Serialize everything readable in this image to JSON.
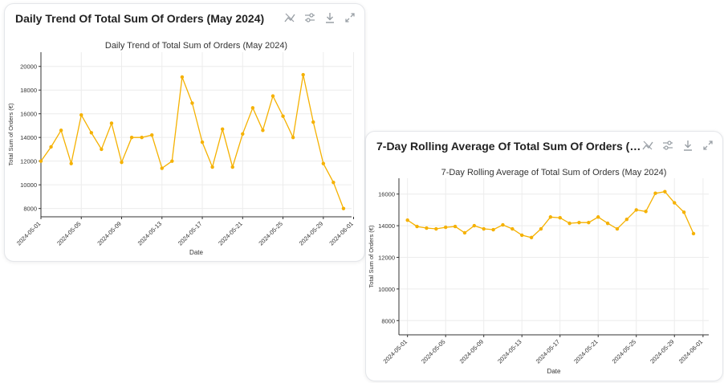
{
  "cards": [
    {
      "title": "Daily Trend Of Total Sum Of Orders (May 2024)",
      "toolbar": [
        "chart-type-icon",
        "filter-sliders-icon",
        "download-icon",
        "expand-icon"
      ]
    },
    {
      "title": "7-Day Rolling Average Of Total Sum Of Orders (May 20...",
      "toolbar": [
        "chart-type-icon",
        "filter-sliders-icon",
        "download-icon",
        "expand-icon"
      ]
    }
  ],
  "colors": {
    "line": "#F5B100",
    "grid": "#ececec",
    "axis": "#333333",
    "text": "#333333"
  },
  "chart_data": [
    {
      "type": "line",
      "title": "Daily Trend of Total Sum of Orders (May 2024)",
      "xlabel": "Date",
      "ylabel": "Total Sum of Orders (€)",
      "ylim": [
        7300,
        21200
      ],
      "xlim": [
        0,
        30.8
      ],
      "yticks": [
        8000,
        10000,
        12000,
        14000,
        16000,
        18000,
        20000
      ],
      "xticks": [
        {
          "pos": 0,
          "label": "2024-05-01"
        },
        {
          "pos": 4,
          "label": "2024-05-05"
        },
        {
          "pos": 8,
          "label": "2024-05-09"
        },
        {
          "pos": 12,
          "label": "2024-05-13"
        },
        {
          "pos": 16,
          "label": "2024-05-17"
        },
        {
          "pos": 20,
          "label": "2024-05-21"
        },
        {
          "pos": 24,
          "label": "2024-05-25"
        },
        {
          "pos": 28,
          "label": "2024-05-29"
        },
        {
          "pos": 31,
          "label": "2024-06-01"
        }
      ],
      "values": [
        12000,
        13200,
        14600,
        11800,
        15900,
        14400,
        13000,
        15200,
        11900,
        14000,
        14000,
        14200,
        11400,
        12000,
        19100,
        16900,
        13600,
        11500,
        14700,
        11500,
        14300,
        16500,
        14600,
        17500,
        15800,
        14000,
        19300,
        15300,
        11800,
        10200,
        8000
      ]
    },
    {
      "type": "line",
      "title": "7-Day Rolling Average of Total Sum of Orders (May 2024)",
      "xlabel": "Date",
      "ylabel": "Total Sum of Orders (€)",
      "ylim": [
        7100,
        17000
      ],
      "xlim": [
        -0.9,
        31.6
      ],
      "yticks": [
        8000,
        10000,
        12000,
        14000,
        16000
      ],
      "xticks": [
        {
          "pos": 0,
          "label": "2024-05-01"
        },
        {
          "pos": 4,
          "label": "2024-05-05"
        },
        {
          "pos": 8,
          "label": "2024-05-09"
        },
        {
          "pos": 12,
          "label": "2024-05-13"
        },
        {
          "pos": 16,
          "label": "2024-05-17"
        },
        {
          "pos": 20,
          "label": "2024-05-21"
        },
        {
          "pos": 24,
          "label": "2024-05-25"
        },
        {
          "pos": 28,
          "label": "2024-05-29"
        },
        {
          "pos": 31,
          "label": "2024-06-01"
        }
      ],
      "values": [
        14350,
        13950,
        13850,
        13800,
        13900,
        13950,
        13550,
        14000,
        13800,
        13750,
        14050,
        13800,
        13400,
        13250,
        13800,
        14550,
        14500,
        14150,
        14200,
        14200,
        14550,
        14150,
        13800,
        14400,
        15000,
        14900,
        16050,
        16150,
        15450,
        14850,
        13500
      ]
    }
  ]
}
